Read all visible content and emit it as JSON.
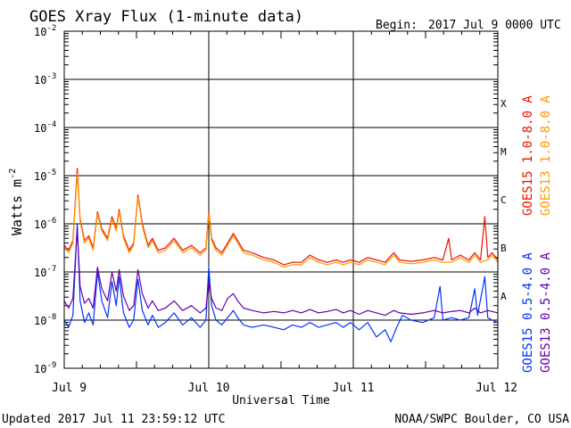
{
  "chart_data": {
    "type": "line",
    "title": "GOES Xray Flux (1-minute data)",
    "begin_label": "Begin:",
    "begin_value": "2017 Jul 9 0000 UTC",
    "xlabel": "Universal Time",
    "ylabel": "Watts m",
    "ylabel_exp": "-2",
    "x_tick_labels": [
      "Jul 9",
      "Jul 10",
      "Jul 11",
      "Jul 12"
    ],
    "x_range_days": [
      0,
      3
    ],
    "y_log_range": [
      -9,
      -2
    ],
    "y_tick_labels": [
      {
        "exp": -2,
        "base": "10",
        "sup": "-2"
      },
      {
        "exp": -3,
        "base": "10",
        "sup": "-3"
      },
      {
        "exp": -4,
        "base": "10",
        "sup": "-4"
      },
      {
        "exp": -5,
        "base": "10",
        "sup": "-5"
      },
      {
        "exp": -6,
        "base": "10",
        "sup": "-6"
      },
      {
        "exp": -7,
        "base": "10",
        "sup": "-7"
      },
      {
        "exp": -8,
        "base": "10",
        "sup": "-8"
      },
      {
        "exp": -9,
        "base": "10",
        "sup": "-9"
      }
    ],
    "flare_classes": [
      {
        "label": "X",
        "exp": -4
      },
      {
        "label": "M",
        "exp": -5
      },
      {
        "label": "C",
        "exp": -6
      },
      {
        "label": "B",
        "exp": -7
      },
      {
        "label": "A",
        "exp": -8
      }
    ],
    "series": [
      {
        "name": "GOES15 1.0-8.0 A",
        "color": "#ee1100",
        "points": [
          [
            0.0,
            -6.45
          ],
          [
            0.03,
            -6.55
          ],
          [
            0.06,
            -6.35
          ],
          [
            0.09,
            -4.85
          ],
          [
            0.11,
            -5.9
          ],
          [
            0.14,
            -6.35
          ],
          [
            0.17,
            -6.25
          ],
          [
            0.2,
            -6.5
          ],
          [
            0.23,
            -5.75
          ],
          [
            0.26,
            -6.1
          ],
          [
            0.3,
            -6.3
          ],
          [
            0.33,
            -5.85
          ],
          [
            0.36,
            -6.1
          ],
          [
            0.38,
            -5.7
          ],
          [
            0.41,
            -6.25
          ],
          [
            0.45,
            -6.55
          ],
          [
            0.48,
            -6.4
          ],
          [
            0.51,
            -5.4
          ],
          [
            0.54,
            -6.0
          ],
          [
            0.58,
            -6.45
          ],
          [
            0.61,
            -6.3
          ],
          [
            0.65,
            -6.55
          ],
          [
            0.7,
            -6.5
          ],
          [
            0.76,
            -6.3
          ],
          [
            0.82,
            -6.55
          ],
          [
            0.88,
            -6.45
          ],
          [
            0.94,
            -6.6
          ],
          [
            0.98,
            -6.5
          ],
          [
            1.0,
            -5.75
          ],
          [
            1.02,
            -6.3
          ],
          [
            1.05,
            -6.5
          ],
          [
            1.09,
            -6.6
          ],
          [
            1.13,
            -6.4
          ],
          [
            1.17,
            -6.2
          ],
          [
            1.2,
            -6.35
          ],
          [
            1.24,
            -6.55
          ],
          [
            1.3,
            -6.6
          ],
          [
            1.38,
            -6.7
          ],
          [
            1.45,
            -6.75
          ],
          [
            1.52,
            -6.85
          ],
          [
            1.58,
            -6.8
          ],
          [
            1.64,
            -6.8
          ],
          [
            1.7,
            -6.65
          ],
          [
            1.76,
            -6.75
          ],
          [
            1.82,
            -6.8
          ],
          [
            1.88,
            -6.75
          ],
          [
            1.93,
            -6.8
          ],
          [
            1.98,
            -6.75
          ],
          [
            2.04,
            -6.8
          ],
          [
            2.1,
            -6.7
          ],
          [
            2.16,
            -6.75
          ],
          [
            2.22,
            -6.8
          ],
          [
            2.28,
            -6.6
          ],
          [
            2.32,
            -6.75
          ],
          [
            2.4,
            -6.78
          ],
          [
            2.48,
            -6.75
          ],
          [
            2.56,
            -6.7
          ],
          [
            2.62,
            -6.75
          ],
          [
            2.66,
            -6.3
          ],
          [
            2.68,
            -6.75
          ],
          [
            2.74,
            -6.65
          ],
          [
            2.8,
            -6.75
          ],
          [
            2.84,
            -6.6
          ],
          [
            2.88,
            -6.75
          ],
          [
            2.91,
            -5.85
          ],
          [
            2.93,
            -6.7
          ],
          [
            2.96,
            -6.6
          ],
          [
            3.0,
            -6.75
          ]
        ]
      },
      {
        "name": "GOES13 1.0-8.0 A",
        "color": "#ff9900",
        "points": [
          [
            0.0,
            -6.5
          ],
          [
            0.03,
            -6.6
          ],
          [
            0.06,
            -6.4
          ],
          [
            0.09,
            -4.95
          ],
          [
            0.11,
            -5.95
          ],
          [
            0.14,
            -6.4
          ],
          [
            0.17,
            -6.3
          ],
          [
            0.2,
            -6.55
          ],
          [
            0.23,
            -5.8
          ],
          [
            0.26,
            -6.15
          ],
          [
            0.3,
            -6.35
          ],
          [
            0.33,
            -5.9
          ],
          [
            0.36,
            -6.15
          ],
          [
            0.38,
            -5.75
          ],
          [
            0.41,
            -6.3
          ],
          [
            0.45,
            -6.6
          ],
          [
            0.48,
            -6.45
          ],
          [
            0.51,
            -5.45
          ],
          [
            0.54,
            -6.05
          ],
          [
            0.58,
            -6.5
          ],
          [
            0.61,
            -6.35
          ],
          [
            0.65,
            -6.6
          ],
          [
            0.7,
            -6.55
          ],
          [
            0.76,
            -6.35
          ],
          [
            0.82,
            -6.6
          ],
          [
            0.88,
            -6.5
          ],
          [
            0.94,
            -6.65
          ],
          [
            0.98,
            -6.55
          ],
          [
            1.0,
            -5.8
          ],
          [
            1.02,
            -6.35
          ],
          [
            1.05,
            -6.55
          ],
          [
            1.09,
            -6.65
          ],
          [
            1.13,
            -6.45
          ],
          [
            1.17,
            -6.25
          ],
          [
            1.2,
            -6.4
          ],
          [
            1.24,
            -6.6
          ],
          [
            1.3,
            -6.65
          ],
          [
            1.38,
            -6.75
          ],
          [
            1.45,
            -6.8
          ],
          [
            1.52,
            -6.9
          ],
          [
            1.58,
            -6.85
          ],
          [
            1.64,
            -6.85
          ],
          [
            1.7,
            -6.7
          ],
          [
            1.76,
            -6.8
          ],
          [
            1.82,
            -6.85
          ],
          [
            1.88,
            -6.8
          ],
          [
            1.93,
            -6.85
          ],
          [
            1.98,
            -6.8
          ],
          [
            2.04,
            -6.85
          ],
          [
            2.1,
            -6.75
          ],
          [
            2.16,
            -6.8
          ],
          [
            2.22,
            -6.85
          ],
          [
            2.28,
            -6.65
          ],
          [
            2.32,
            -6.8
          ],
          [
            2.4,
            -6.83
          ],
          [
            2.48,
            -6.8
          ],
          [
            2.56,
            -6.75
          ],
          [
            2.62,
            -6.8
          ],
          [
            2.68,
            -6.8
          ],
          [
            2.74,
            -6.7
          ],
          [
            2.8,
            -6.8
          ],
          [
            2.84,
            -6.65
          ],
          [
            2.88,
            -6.8
          ],
          [
            2.93,
            -6.75
          ],
          [
            2.96,
            -6.65
          ],
          [
            3.0,
            -6.8
          ]
        ]
      },
      {
        "name": "GOES15 0.5-4.0 A",
        "color": "#0033ff",
        "points": [
          [
            0.0,
            -8.0
          ],
          [
            0.03,
            -8.15
          ],
          [
            0.06,
            -7.9
          ],
          [
            0.09,
            -6.0
          ],
          [
            0.11,
            -7.6
          ],
          [
            0.14,
            -8.05
          ],
          [
            0.17,
            -7.85
          ],
          [
            0.2,
            -8.1
          ],
          [
            0.23,
            -7.0
          ],
          [
            0.26,
            -7.6
          ],
          [
            0.3,
            -7.95
          ],
          [
            0.33,
            -7.2
          ],
          [
            0.36,
            -7.7
          ],
          [
            0.38,
            -7.1
          ],
          [
            0.41,
            -7.85
          ],
          [
            0.45,
            -8.15
          ],
          [
            0.48,
            -8.0
          ],
          [
            0.51,
            -7.15
          ],
          [
            0.54,
            -7.8
          ],
          [
            0.58,
            -8.1
          ],
          [
            0.61,
            -7.9
          ],
          [
            0.65,
            -8.15
          ],
          [
            0.7,
            -8.05
          ],
          [
            0.76,
            -7.85
          ],
          [
            0.82,
            -8.1
          ],
          [
            0.88,
            -7.95
          ],
          [
            0.94,
            -8.15
          ],
          [
            0.98,
            -8.0
          ],
          [
            1.0,
            -6.9
          ],
          [
            1.02,
            -7.7
          ],
          [
            1.05,
            -8.0
          ],
          [
            1.09,
            -8.1
          ],
          [
            1.13,
            -7.95
          ],
          [
            1.17,
            -7.8
          ],
          [
            1.2,
            -7.95
          ],
          [
            1.24,
            -8.1
          ],
          [
            1.3,
            -8.15
          ],
          [
            1.38,
            -8.1
          ],
          [
            1.45,
            -8.15
          ],
          [
            1.52,
            -8.2
          ],
          [
            1.58,
            -8.1
          ],
          [
            1.64,
            -8.15
          ],
          [
            1.7,
            -8.05
          ],
          [
            1.76,
            -8.15
          ],
          [
            1.82,
            -8.1
          ],
          [
            1.88,
            -8.05
          ],
          [
            1.93,
            -8.15
          ],
          [
            1.98,
            -8.05
          ],
          [
            2.04,
            -8.2
          ],
          [
            2.1,
            -8.05
          ],
          [
            2.16,
            -8.35
          ],
          [
            2.22,
            -8.2
          ],
          [
            2.26,
            -8.45
          ],
          [
            2.3,
            -8.15
          ],
          [
            2.34,
            -7.9
          ],
          [
            2.4,
            -8.0
          ],
          [
            2.48,
            -8.05
          ],
          [
            2.56,
            -7.95
          ],
          [
            2.6,
            -7.3
          ],
          [
            2.62,
            -8.0
          ],
          [
            2.68,
            -7.95
          ],
          [
            2.74,
            -8.0
          ],
          [
            2.8,
            -7.95
          ],
          [
            2.84,
            -7.35
          ],
          [
            2.86,
            -7.9
          ],
          [
            2.91,
            -7.1
          ],
          [
            2.93,
            -7.95
          ],
          [
            2.96,
            -8.0
          ],
          [
            3.0,
            -8.05
          ]
        ]
      },
      {
        "name": "GOES13 0.5-4.0 A",
        "color": "#6600aa",
        "points": [
          [
            0.0,
            -7.6
          ],
          [
            0.03,
            -7.75
          ],
          [
            0.06,
            -7.55
          ],
          [
            0.09,
            -6.1
          ],
          [
            0.11,
            -7.3
          ],
          [
            0.14,
            -7.65
          ],
          [
            0.17,
            -7.55
          ],
          [
            0.2,
            -7.75
          ],
          [
            0.23,
            -6.9
          ],
          [
            0.26,
            -7.35
          ],
          [
            0.3,
            -7.6
          ],
          [
            0.33,
            -7.0
          ],
          [
            0.36,
            -7.4
          ],
          [
            0.38,
            -6.95
          ],
          [
            0.41,
            -7.5
          ],
          [
            0.45,
            -7.8
          ],
          [
            0.48,
            -7.7
          ],
          [
            0.51,
            -6.95
          ],
          [
            0.54,
            -7.45
          ],
          [
            0.58,
            -7.75
          ],
          [
            0.61,
            -7.6
          ],
          [
            0.65,
            -7.8
          ],
          [
            0.7,
            -7.75
          ],
          [
            0.76,
            -7.6
          ],
          [
            0.82,
            -7.8
          ],
          [
            0.88,
            -7.7
          ],
          [
            0.94,
            -7.85
          ],
          [
            0.98,
            -7.75
          ],
          [
            1.0,
            -7.2
          ],
          [
            1.02,
            -7.55
          ],
          [
            1.05,
            -7.75
          ],
          [
            1.09,
            -7.8
          ],
          [
            1.13,
            -7.55
          ],
          [
            1.17,
            -7.45
          ],
          [
            1.2,
            -7.6
          ],
          [
            1.24,
            -7.75
          ],
          [
            1.3,
            -7.8
          ],
          [
            1.38,
            -7.85
          ],
          [
            1.45,
            -7.82
          ],
          [
            1.52,
            -7.85
          ],
          [
            1.58,
            -7.8
          ],
          [
            1.64,
            -7.85
          ],
          [
            1.7,
            -7.78
          ],
          [
            1.76,
            -7.85
          ],
          [
            1.82,
            -7.82
          ],
          [
            1.88,
            -7.78
          ],
          [
            1.93,
            -7.85
          ],
          [
            1.98,
            -7.8
          ],
          [
            2.04,
            -7.88
          ],
          [
            2.1,
            -7.8
          ],
          [
            2.16,
            -7.85
          ],
          [
            2.22,
            -7.9
          ],
          [
            2.28,
            -7.8
          ],
          [
            2.32,
            -7.85
          ],
          [
            2.4,
            -7.88
          ],
          [
            2.48,
            -7.85
          ],
          [
            2.56,
            -7.8
          ],
          [
            2.62,
            -7.85
          ],
          [
            2.68,
            -7.82
          ],
          [
            2.74,
            -7.8
          ],
          [
            2.8,
            -7.85
          ],
          [
            2.84,
            -7.75
          ],
          [
            2.88,
            -7.85
          ],
          [
            2.93,
            -7.8
          ],
          [
            2.96,
            -7.82
          ],
          [
            3.0,
            -7.85
          ]
        ]
      }
    ]
  },
  "footer": {
    "updated": "Updated 2017 Jul 11 23:59:12 UTC",
    "credit": "NOAA/SWPC Boulder, CO USA"
  }
}
